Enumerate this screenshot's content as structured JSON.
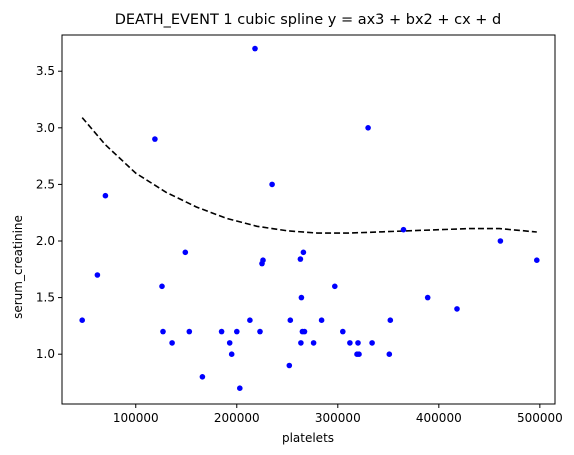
{
  "chart_data": {
    "type": "scatter",
    "title": "DEATH_EVENT 1 cubic spline  y = ax3 + bx2 + cx + d",
    "xlabel": "platelets",
    "ylabel": "serum_creatinine",
    "xlim": [
      27000,
      515000
    ],
    "ylim": [
      0.56,
      3.82
    ],
    "xticks": [
      100000,
      200000,
      300000,
      400000,
      500000
    ],
    "xtick_labels": [
      "100000",
      "200000",
      "300000",
      "400000",
      "500000"
    ],
    "yticks": [
      1.0,
      1.5,
      2.0,
      2.5,
      3.0,
      3.5
    ],
    "ytick_labels": [
      "1.0",
      "1.5",
      "2.0",
      "2.5",
      "3.0",
      "3.5"
    ],
    "grid": false,
    "colors": {
      "points": "#0000ff",
      "curve": "#000000"
    },
    "points": {
      "x": [
        47000,
        62000,
        70000,
        119000,
        126000,
        127000,
        136000,
        149000,
        153000,
        166000,
        185000,
        193000,
        195000,
        200000,
        203000,
        213000,
        218000,
        223000,
        225000,
        226000,
        235000,
        252000,
        253000,
        263000,
        263500,
        264000,
        265000,
        266000,
        267000,
        276000,
        284000,
        297000,
        305000,
        312000,
        319000,
        320000,
        321000,
        330000,
        334000,
        351000,
        352000,
        365000,
        389000,
        418000,
        461000,
        497000
      ],
      "y": [
        1.3,
        1.7,
        2.4,
        2.9,
        1.6,
        1.2,
        1.1,
        1.9,
        1.2,
        0.8,
        1.2,
        1.1,
        1.0,
        1.2,
        0.7,
        1.3,
        3.7,
        1.2,
        1.8,
        1.83,
        2.5,
        0.9,
        1.3,
        1.84,
        1.1,
        1.5,
        1.2,
        1.9,
        1.2,
        1.1,
        1.3,
        1.6,
        1.2,
        1.1,
        1.0,
        1.1,
        1.0,
        3.0,
        1.1,
        1.0,
        1.3,
        2.1,
        1.5,
        1.4,
        2.0,
        1.83
      ]
    },
    "curve": {
      "style": "dashed",
      "x": [
        47000,
        70000,
        100000,
        130000,
        160000,
        190000,
        220000,
        250000,
        280000,
        310000,
        340000,
        370000,
        400000,
        430000,
        460000,
        497000
      ],
      "y": [
        3.09,
        2.85,
        2.6,
        2.43,
        2.3,
        2.2,
        2.13,
        2.09,
        2.07,
        2.07,
        2.08,
        2.09,
        2.1,
        2.11,
        2.11,
        2.08
      ]
    }
  }
}
